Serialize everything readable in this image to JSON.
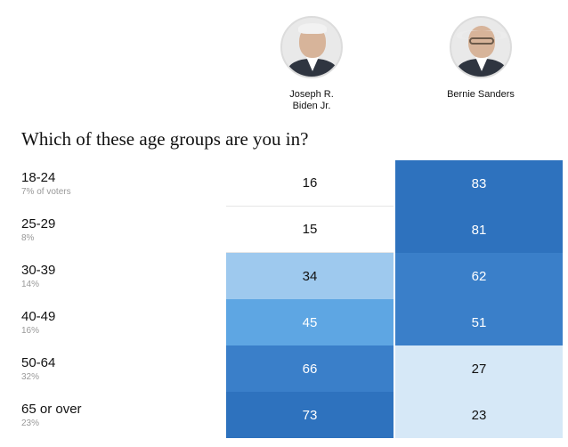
{
  "candidates": [
    {
      "name_line1": "Joseph R.",
      "name_line2": "Biden Jr.",
      "photo": "biden-portrait"
    },
    {
      "name_line1": "Bernie Sanders",
      "name_line2": "",
      "photo": "sanders-portrait"
    }
  ],
  "question": "Which of these age groups are you in?",
  "chart_data": {
    "type": "table",
    "title": "Which of these age groups are you in?",
    "columns": [
      "Joseph R. Biden Jr.",
      "Bernie Sanders"
    ],
    "rows": [
      {
        "group": "18-24",
        "share": "7% of voters",
        "values": [
          16,
          83
        ]
      },
      {
        "group": "25-29",
        "share": "8%",
        "values": [
          15,
          81
        ]
      },
      {
        "group": "30-39",
        "share": "14%",
        "values": [
          34,
          62
        ]
      },
      {
        "group": "40-49",
        "share": "16%",
        "values": [
          45,
          51
        ]
      },
      {
        "group": "50-64",
        "share": "32%",
        "values": [
          66,
          27
        ]
      },
      {
        "group": "65 or over",
        "share": "23%",
        "values": [
          73,
          23
        ]
      }
    ],
    "color_scale": [
      "#ffffff",
      "#d6e8f7",
      "#9ec9ee",
      "#5ea6e3",
      "#3a7fc9",
      "#2e72be"
    ]
  }
}
